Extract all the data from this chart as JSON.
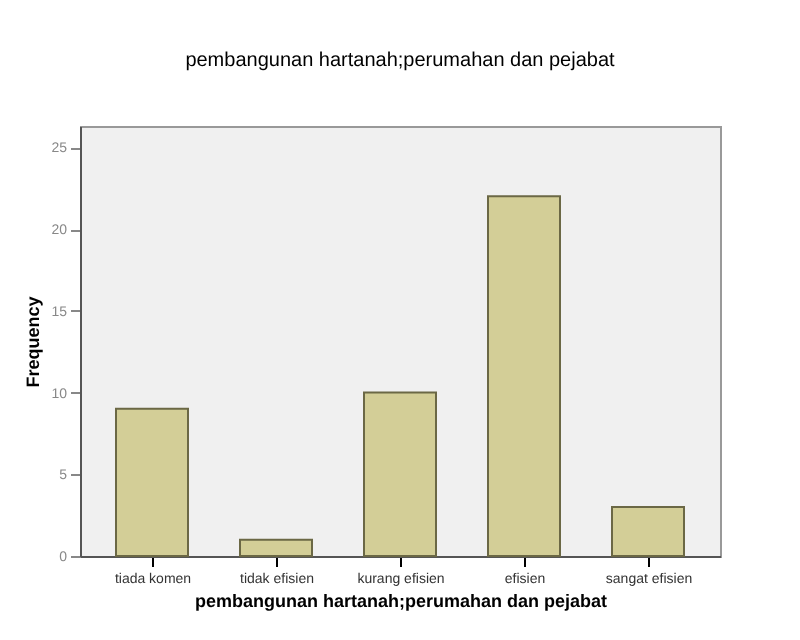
{
  "chart_data": {
    "type": "bar",
    "title": "pembangunan hartanah;perumahan dan pejabat",
    "xlabel": "pembangunan hartanah;perumahan dan pejabat",
    "ylabel": "Frequency",
    "categories": [
      "tiada komen",
      "tidak efisien",
      "kurang efisien",
      "efisien",
      "sangat efisien"
    ],
    "values": [
      9,
      1,
      10,
      22,
      3
    ],
    "color": "#d3ce97",
    "ylim": [
      0,
      26.3
    ],
    "yticks": [
      0,
      5,
      10,
      15,
      20,
      25
    ],
    "grid": false
  }
}
